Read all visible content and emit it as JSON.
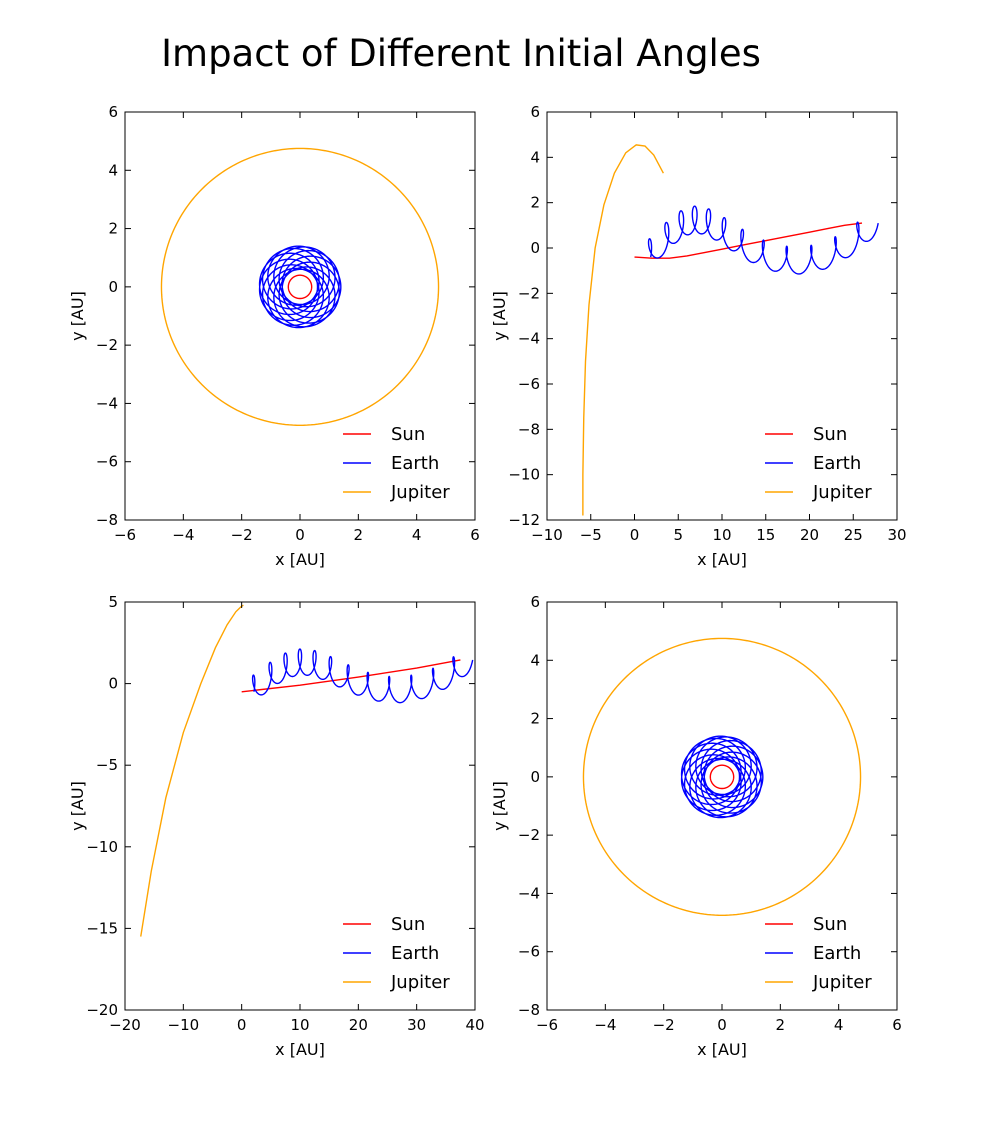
{
  "title": "Impact of Different Initial Angles",
  "colors": {
    "sun": "#ff0000",
    "earth": "#0000ff",
    "jupiter": "#ffa500"
  },
  "chart_data": [
    {
      "type": "line",
      "xlabel": "x [AU]",
      "ylabel": "y [AU]",
      "xlim": [
        -6,
        6
      ],
      "ylim": [
        -8,
        6
      ],
      "xticks": [
        -6,
        -4,
        -2,
        0,
        2,
        4,
        6
      ],
      "yticks": [
        -8,
        -6,
        -4,
        -2,
        0,
        2,
        4,
        6
      ],
      "legend": [
        "Sun",
        "Earth",
        "Jupiter"
      ],
      "legend_position": "bottom-right",
      "series": [
        {
          "name": "Sun",
          "kind": "circle",
          "center": [
            0,
            0
          ],
          "radius": 0.4
        },
        {
          "name": "Earth",
          "kind": "loops",
          "center_start": [
            0,
            0
          ],
          "center_end": [
            0,
            0
          ],
          "radius": 1.0,
          "drift_amplitude": 0.4,
          "turns": 12
        },
        {
          "name": "Jupiter",
          "kind": "circle",
          "center": [
            0,
            0
          ],
          "radius": 4.75
        }
      ]
    },
    {
      "type": "line",
      "xlabel": "x [AU]",
      "ylabel": "y [AU]",
      "xlim": [
        -10,
        30
      ],
      "ylim": [
        -12,
        6
      ],
      "xticks": [
        -10,
        -5,
        0,
        5,
        10,
        15,
        20,
        25,
        30
      ],
      "yticks": [
        -12,
        -10,
        -8,
        -6,
        -4,
        -2,
        0,
        2,
        4,
        6
      ],
      "legend": [
        "Sun",
        "Earth",
        "Jupiter"
      ],
      "legend_position": "bottom-right",
      "series": [
        {
          "name": "Sun",
          "kind": "polyline",
          "x": [
            0,
            2,
            4,
            6,
            8,
            10,
            12,
            14,
            16,
            18,
            20,
            22,
            24,
            26
          ],
          "y": [
            -0.4,
            -0.45,
            -0.45,
            -0.35,
            -0.2,
            -0.05,
            0.1,
            0.25,
            0.4,
            0.55,
            0.7,
            0.85,
            1.0,
            1.1
          ]
        },
        {
          "name": "Earth",
          "kind": "loops",
          "center_start": [
            0,
            -0.4
          ],
          "center_end": [
            26,
            1.1
          ],
          "radius": 0.6,
          "drift_amplitude": 1.25,
          "turns": 12
        },
        {
          "name": "Jupiter",
          "kind": "polyline",
          "x": [
            -5.9,
            -5.9,
            -5.8,
            -5.6,
            -5.2,
            -4.5,
            -3.5,
            -2.3,
            -1.0,
            0.2,
            1.2,
            2.2,
            3.3
          ],
          "y": [
            -11.8,
            -10.0,
            -7.5,
            -5.0,
            -2.5,
            0.0,
            1.9,
            3.3,
            4.2,
            4.55,
            4.5,
            4.1,
            3.3
          ]
        }
      ]
    },
    {
      "type": "line",
      "xlabel": "x [AU]",
      "ylabel": "y [AU]",
      "xlim": [
        -20,
        40
      ],
      "ylim": [
        -20,
        5
      ],
      "xticks": [
        -20,
        -10,
        0,
        10,
        20,
        30,
        40
      ],
      "yticks": [
        -20,
        -15,
        -10,
        -5,
        0,
        5
      ],
      "legend": [
        "Sun",
        "Earth",
        "Jupiter"
      ],
      "legend_position": "bottom-right",
      "series": [
        {
          "name": "Sun",
          "kind": "polyline",
          "x": [
            0,
            10,
            20,
            30,
            37.5
          ],
          "y": [
            -0.5,
            -0.1,
            0.4,
            0.95,
            1.45
          ]
        },
        {
          "name": "Earth",
          "kind": "loops",
          "center_start": [
            0,
            -0.5
          ],
          "center_end": [
            37.5,
            1.45
          ],
          "radius": 0.8,
          "drift_amplitude": 1.3,
          "turns": 12
        },
        {
          "name": "Jupiter",
          "kind": "polyline",
          "x": [
            -17.3,
            -15.5,
            -13.0,
            -10.0,
            -7.0,
            -4.5,
            -2.5,
            -1.0,
            0.0,
            0.3
          ],
          "y": [
            -15.5,
            -11.5,
            -7.0,
            -3.0,
            0.0,
            2.2,
            3.6,
            4.4,
            4.75,
            4.8
          ]
        }
      ]
    },
    {
      "type": "line",
      "xlabel": "x [AU]",
      "ylabel": "y [AU]",
      "xlim": [
        -6,
        6
      ],
      "ylim": [
        -8,
        6
      ],
      "xticks": [
        -6,
        -4,
        -2,
        0,
        2,
        4,
        6
      ],
      "yticks": [
        -8,
        -6,
        -4,
        -2,
        0,
        2,
        4,
        6
      ],
      "legend": [
        "Sun",
        "Earth",
        "Jupiter"
      ],
      "legend_position": "bottom-right",
      "series": [
        {
          "name": "Sun",
          "kind": "circle",
          "center": [
            0,
            0
          ],
          "radius": 0.4
        },
        {
          "name": "Earth",
          "kind": "loops",
          "center_start": [
            0,
            0
          ],
          "center_end": [
            0,
            0
          ],
          "radius": 1.0,
          "drift_amplitude": 0.4,
          "turns": 12
        },
        {
          "name": "Jupiter",
          "kind": "circle",
          "center": [
            0,
            0
          ],
          "radius": 4.75
        }
      ]
    }
  ]
}
